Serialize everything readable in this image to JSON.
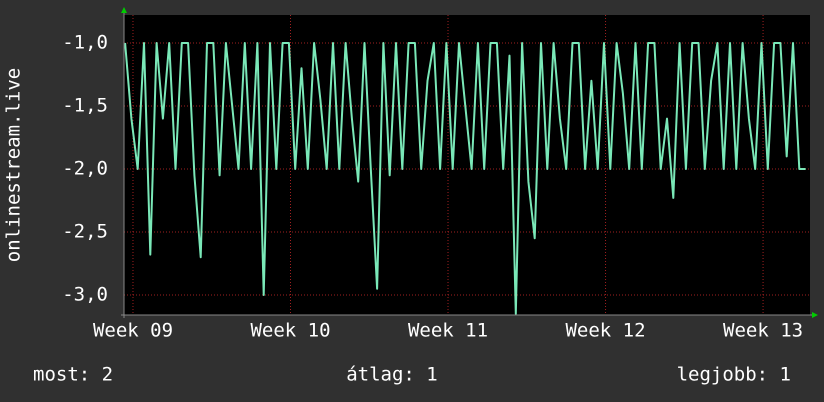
{
  "chart_data": {
    "type": "line",
    "y_label": "onlinestream.live",
    "x": [
      8.95,
      8.99,
      9.03,
      9.07,
      9.11,
      9.15,
      9.19,
      9.23,
      9.27,
      9.31,
      9.35,
      9.39,
      9.43,
      9.47,
      9.51,
      9.55,
      9.59,
      9.63,
      9.67,
      9.71,
      9.75,
      9.79,
      9.83,
      9.87,
      9.91,
      9.95,
      9.99,
      10.03,
      10.07,
      10.11,
      10.15,
      10.19,
      10.23,
      10.27,
      10.31,
      10.35,
      10.39,
      10.43,
      10.47,
      10.51,
      10.55,
      10.59,
      10.63,
      10.67,
      10.71,
      10.75,
      10.79,
      10.83,
      10.87,
      10.91,
      10.95,
      10.99,
      11.03,
      11.07,
      11.11,
      11.15,
      11.19,
      11.23,
      11.27,
      11.31,
      11.35,
      11.39,
      11.43,
      11.47,
      11.51,
      11.55,
      11.59,
      11.63,
      11.67,
      11.71,
      11.75,
      11.79,
      11.83,
      11.87,
      11.91,
      11.95,
      11.99,
      12.03,
      12.07,
      12.11,
      12.15,
      12.19,
      12.23,
      12.27,
      12.31,
      12.35,
      12.39,
      12.43,
      12.47,
      12.51,
      12.55,
      12.59,
      12.63,
      12.67,
      12.71,
      12.75,
      12.79,
      12.83,
      12.87,
      12.91,
      12.95,
      12.99,
      13.03,
      13.07,
      13.11,
      13.15,
      13.19,
      13.23,
      13.27
    ],
    "series": [
      {
        "color": "#7ae8b8",
        "values": [
          -1,
          -1.6,
          -2,
          -1,
          -2.68,
          -1,
          -1.6,
          -1,
          -2,
          -1,
          -1,
          -2.05,
          -2.7,
          -1,
          -1,
          -2.05,
          -1,
          -1.5,
          -2,
          -1,
          -2,
          -1,
          -3.0,
          -1,
          -2,
          -1,
          -1,
          -2,
          -1.2,
          -2,
          -1,
          -1.45,
          -2,
          -1,
          -2,
          -1,
          -1.6,
          -2.1,
          -1,
          -2,
          -2.95,
          -1,
          -2.05,
          -1,
          -2,
          -1,
          -1,
          -2,
          -1.3,
          -1,
          -2,
          -1,
          -2,
          -1,
          -1.5,
          -2,
          -1,
          -2,
          -1,
          -1,
          -2,
          -1.1,
          -3.15,
          -1,
          -2.1,
          -2.55,
          -1,
          -2,
          -1,
          -1.6,
          -2,
          -1,
          -1,
          -2,
          -1.3,
          -2,
          -1,
          -2,
          -1,
          -1.4,
          -2,
          -1,
          -2,
          -1,
          -1,
          -2,
          -1.6,
          -2.23,
          -1,
          -2,
          -1,
          -1,
          -2,
          -1.3,
          -1,
          -2,
          -1,
          -2,
          -1,
          -1.6,
          -2,
          -1,
          -2,
          -1,
          -1,
          -1.9,
          -1,
          -2,
          -2
        ]
      }
    ],
    "xlim": [
      8.943,
      13.298
    ],
    "xticks": [
      {
        "value": 9,
        "label": "Week 09"
      },
      {
        "value": 10,
        "label": "Week 10"
      },
      {
        "value": 11,
        "label": "Week 11"
      },
      {
        "value": 12,
        "label": "Week 12"
      },
      {
        "value": 13,
        "label": "Week 13"
      }
    ],
    "ylim": [
      -3.159,
      -0.778
    ],
    "yticks": [
      {
        "value": -3,
        "label": "-3,0"
      },
      {
        "value": -2.5,
        "label": "-2,5"
      },
      {
        "value": -2,
        "label": "-2,0"
      },
      {
        "value": -1.5,
        "label": "-1,5"
      },
      {
        "value": -1,
        "label": "-1,0"
      }
    ],
    "grid": true,
    "footer": [
      "most: 2",
      "átlag: 1",
      "legjobb: 1"
    ]
  }
}
